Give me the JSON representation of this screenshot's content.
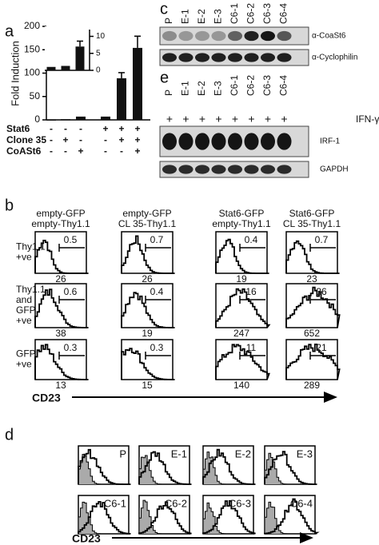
{
  "panels": {
    "a": {
      "label": "a",
      "conditions": [
        {
          "label": "Stat6",
          "signs": [
            "-",
            "-",
            "-",
            "+",
            "+",
            "+"
          ]
        },
        {
          "label": "Clone 35",
          "signs": [
            "-",
            "+",
            "-",
            "-",
            "+",
            "+"
          ]
        },
        {
          "label": "CoASt6",
          "signs": [
            "-",
            "-",
            "+",
            "-",
            "-",
            "+"
          ]
        }
      ]
    },
    "c": {
      "label": "c",
      "lanes": [
        "P",
        "E-1",
        "E-2",
        "E-3",
        "C6-1",
        "C6-2",
        "C6-3",
        "C6-4"
      ],
      "blots": [
        "α-CoaSt6",
        "α-Cyclophilin"
      ]
    },
    "e": {
      "label": "e",
      "lanes": [
        "P",
        "E-1",
        "E-2",
        "E-3",
        "C6-1",
        "C6-2",
        "C6-3",
        "C6-4"
      ],
      "treatment": [
        "+",
        "+",
        "+",
        "+",
        "+",
        "+",
        "+",
        "+"
      ],
      "treatment_label": "IFN-γ",
      "blots": [
        "IRF-1",
        "GAPDH"
      ]
    },
    "b": {
      "label": "b",
      "columns": [
        [
          "empty-GFP",
          "empty-Thy1.1"
        ],
        [
          "empty-GFP",
          "CL 35-Thy1.1"
        ],
        [
          "Stat6-GFP",
          "empty-Thy1.1"
        ],
        [
          "Stat6-GFP",
          "CL 35-Thy1.1"
        ]
      ],
      "rows": [
        {
          "label": [
            "Thy1.1",
            "+ve"
          ],
          "gates": [
            "0.5",
            "0.7",
            "0.4",
            "0.7"
          ],
          "mfi": [
            "26",
            "26",
            "19",
            "23"
          ]
        },
        {
          "label": [
            "Thy1.1",
            "and",
            "GFP",
            "+ve"
          ],
          "gates": [
            "0.6",
            "0.4",
            "16",
            "36"
          ],
          "mfi": [
            "38",
            "19",
            "247",
            "652"
          ]
        },
        {
          "label": [
            "GFP",
            "+ve"
          ],
          "gates": [
            "0.3",
            "0.3",
            "11",
            "21"
          ],
          "mfi": [
            "13",
            "15",
            "140",
            "289"
          ]
        }
      ],
      "axis_label": "CD23"
    },
    "d": {
      "label": "d",
      "samples": [
        "P",
        "E-1",
        "E-2",
        "E-3",
        "C6-1",
        "C6-2",
        "C6-3",
        "C6-4"
      ],
      "axis_label": "CD23"
    }
  },
  "chart_data": [
    {
      "type": "bar",
      "ylabel": "Fold Induction",
      "values": [
        1,
        1.5,
        7,
        7,
        89,
        154
      ],
      "errors": [
        null,
        null,
        null,
        null,
        12,
        25
      ],
      "color": "#111111",
      "ylim": [
        0,
        200
      ],
      "yticks": [
        0,
        50,
        100,
        150,
        200
      ]
    },
    {
      "type": "bar",
      "values": [
        1,
        1.3,
        7
      ],
      "errors": [
        null,
        null,
        1.6
      ],
      "color": "#111111",
      "ylim": [
        0,
        12
      ],
      "yticks": [
        0,
        5,
        10
      ]
    }
  ]
}
